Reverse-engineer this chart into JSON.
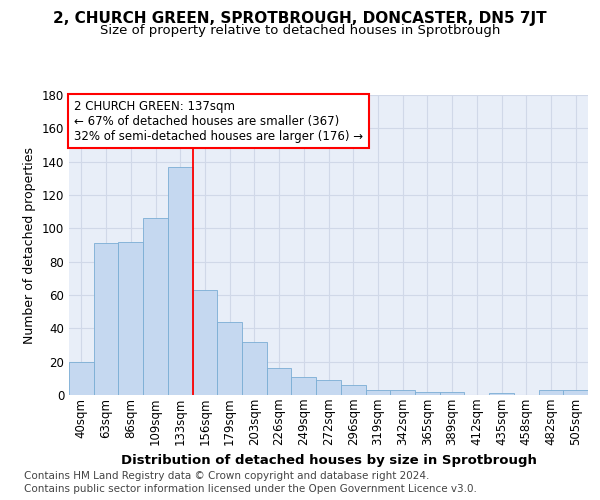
{
  "title": "2, CHURCH GREEN, SPROTBROUGH, DONCASTER, DN5 7JT",
  "subtitle": "Size of property relative to detached houses in Sprotbrough",
  "xlabel": "Distribution of detached houses by size in Sprotbrough",
  "ylabel": "Number of detached properties",
  "footer_line1": "Contains HM Land Registry data © Crown copyright and database right 2024.",
  "footer_line2": "Contains public sector information licensed under the Open Government Licence v3.0.",
  "categories": [
    "40sqm",
    "63sqm",
    "86sqm",
    "109sqm",
    "133sqm",
    "156sqm",
    "179sqm",
    "203sqm",
    "226sqm",
    "249sqm",
    "272sqm",
    "296sqm",
    "319sqm",
    "342sqm",
    "365sqm",
    "389sqm",
    "412sqm",
    "435sqm",
    "458sqm",
    "482sqm",
    "505sqm"
  ],
  "values": [
    20,
    91,
    92,
    106,
    137,
    63,
    44,
    32,
    16,
    11,
    9,
    6,
    3,
    3,
    2,
    2,
    0,
    1,
    0,
    3,
    3
  ],
  "bar_color": "#c5d8f0",
  "bar_edge_color": "#7aadd4",
  "grid_color": "#d0d8e8",
  "background_color": "#ffffff",
  "plot_bg_color": "#e8eef8",
  "vline_x": 4.5,
  "vline_color": "red",
  "annotation_line1": "2 CHURCH GREEN: 137sqm",
  "annotation_line2": "← 67% of detached houses are smaller (367)",
  "annotation_line3": "32% of semi-detached houses are larger (176) →",
  "annotation_box_color": "white",
  "annotation_border_color": "red",
  "ylim": [
    0,
    180
  ],
  "yticks": [
    0,
    20,
    40,
    60,
    80,
    100,
    120,
    140,
    160,
    180
  ],
  "title_fontsize": 11,
  "subtitle_fontsize": 9.5,
  "xlabel_fontsize": 9.5,
  "ylabel_fontsize": 9,
  "tick_fontsize": 8.5,
  "annot_fontsize": 8.5,
  "footer_fontsize": 7.5
}
